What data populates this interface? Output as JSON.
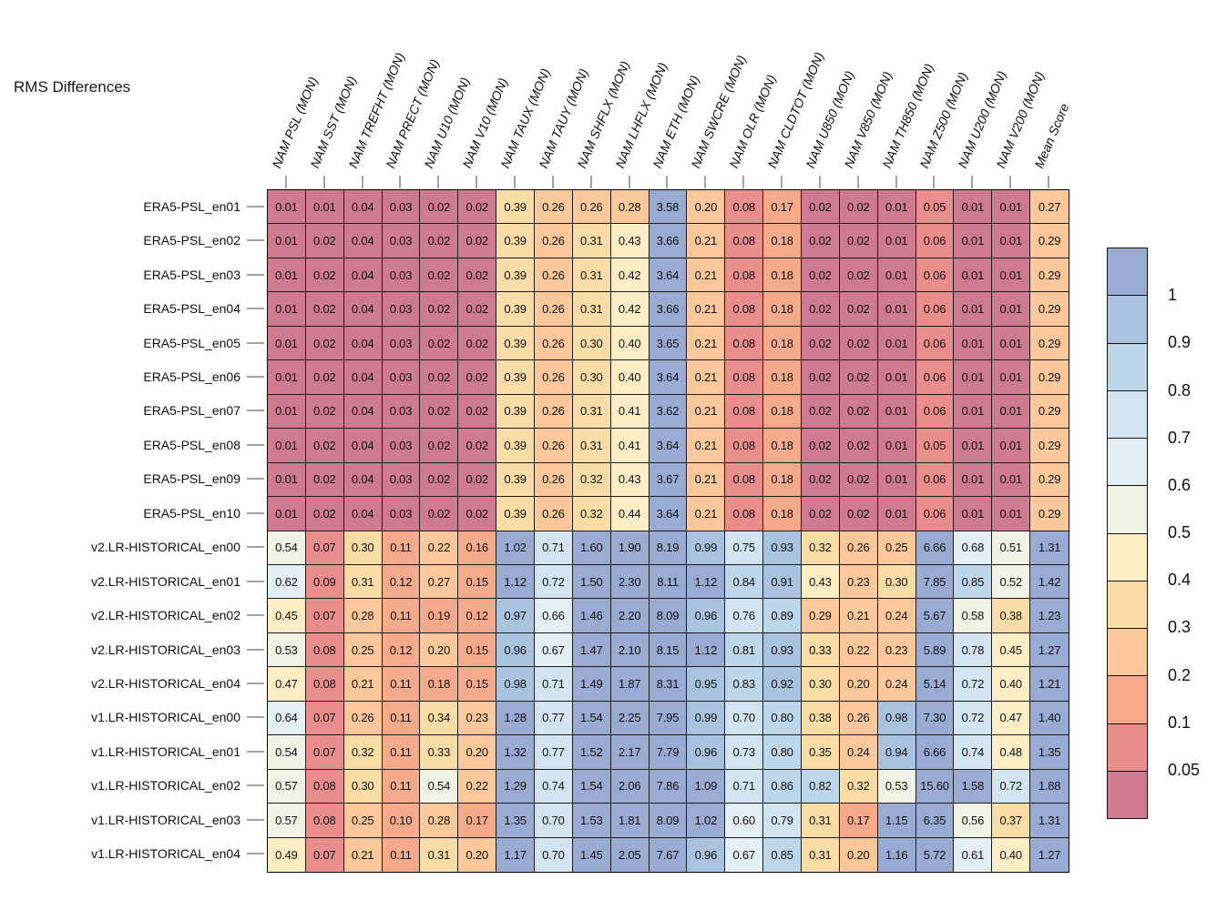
{
  "title": "RMS Differences",
  "chart_data": {
    "type": "heatmap",
    "title": "RMS Differences",
    "columns": [
      "NAM PSL (MON)",
      "NAM SST (MON)",
      "NAM TREFHT (MON)",
      "NAM PRECT (MON)",
      "NAM U10 (MON)",
      "NAM V10 (MON)",
      "NAM TAUX (MON)",
      "NAM TAUY (MON)",
      "NAM SHFLX (MON)",
      "NAM LHFLX (MON)",
      "NAM ETH (MON)",
      "NAM SWCRE (MON)",
      "NAM OLR (MON)",
      "NAM CLDTOT (MON)",
      "NAM U850 (MON)",
      "NAM V850 (MON)",
      "NAM TH850 (MON)",
      "NAM Z500 (MON)",
      "NAM U200 (MON)",
      "NAM V200 (MON)",
      "Mean Score"
    ],
    "rows": [
      {
        "label": "ERA5-PSL_en01",
        "values": [
          "0.01",
          "0.01",
          "0.04",
          "0.03",
          "0.02",
          "0.02",
          "0.39",
          "0.26",
          "0.26",
          "0.28",
          "3.58",
          "0.20",
          "0.08",
          "0.17",
          "0.02",
          "0.02",
          "0.01",
          "0.05",
          "0.01",
          "0.01",
          "0.27"
        ]
      },
      {
        "label": "ERA5-PSL_en02",
        "values": [
          "0.01",
          "0.02",
          "0.04",
          "0.03",
          "0.02",
          "0.02",
          "0.39",
          "0.26",
          "0.31",
          "0.43",
          "3.66",
          "0.21",
          "0.08",
          "0.18",
          "0.02",
          "0.02",
          "0.01",
          "0.06",
          "0.01",
          "0.01",
          "0.29"
        ]
      },
      {
        "label": "ERA5-PSL_en03",
        "values": [
          "0.01",
          "0.02",
          "0.04",
          "0.03",
          "0.02",
          "0.02",
          "0.39",
          "0.26",
          "0.31",
          "0.42",
          "3.64",
          "0.21",
          "0.08",
          "0.18",
          "0.02",
          "0.02",
          "0.01",
          "0.06",
          "0.01",
          "0.01",
          "0.29"
        ]
      },
      {
        "label": "ERA5-PSL_en04",
        "values": [
          "0.01",
          "0.02",
          "0.04",
          "0.03",
          "0.02",
          "0.02",
          "0.39",
          "0.26",
          "0.31",
          "0.42",
          "3.66",
          "0.21",
          "0.08",
          "0.18",
          "0.02",
          "0.02",
          "0.01",
          "0.06",
          "0.01",
          "0.01",
          "0.29"
        ]
      },
      {
        "label": "ERA5-PSL_en05",
        "values": [
          "0.01",
          "0.02",
          "0.04",
          "0.03",
          "0.02",
          "0.02",
          "0.39",
          "0.26",
          "0.30",
          "0.40",
          "3.65",
          "0.21",
          "0.08",
          "0.18",
          "0.02",
          "0.02",
          "0.01",
          "0.06",
          "0.01",
          "0.01",
          "0.29"
        ]
      },
      {
        "label": "ERA5-PSL_en06",
        "values": [
          "0.01",
          "0.02",
          "0.04",
          "0.03",
          "0.02",
          "0.02",
          "0.39",
          "0.26",
          "0.30",
          "0.40",
          "3.64",
          "0.21",
          "0.08",
          "0.18",
          "0.02",
          "0.02",
          "0.01",
          "0.06",
          "0.01",
          "0.01",
          "0.29"
        ]
      },
      {
        "label": "ERA5-PSL_en07",
        "values": [
          "0.01",
          "0.02",
          "0.04",
          "0.03",
          "0.02",
          "0.02",
          "0.39",
          "0.26",
          "0.31",
          "0.41",
          "3.62",
          "0.21",
          "0.08",
          "0.18",
          "0.02",
          "0.02",
          "0.01",
          "0.06",
          "0.01",
          "0.01",
          "0.29"
        ]
      },
      {
        "label": "ERA5-PSL_en08",
        "values": [
          "0.01",
          "0.02",
          "0.04",
          "0.03",
          "0.02",
          "0.02",
          "0.39",
          "0.26",
          "0.31",
          "0.41",
          "3.64",
          "0.21",
          "0.08",
          "0.18",
          "0.02",
          "0.02",
          "0.01",
          "0.05",
          "0.01",
          "0.01",
          "0.29"
        ]
      },
      {
        "label": "ERA5-PSL_en09",
        "values": [
          "0.01",
          "0.02",
          "0.04",
          "0.03",
          "0.02",
          "0.02",
          "0.39",
          "0.26",
          "0.32",
          "0.43",
          "3.67",
          "0.21",
          "0.08",
          "0.18",
          "0.02",
          "0.02",
          "0.01",
          "0.06",
          "0.01",
          "0.01",
          "0.29"
        ]
      },
      {
        "label": "ERA5-PSL_en10",
        "values": [
          "0.01",
          "0.02",
          "0.04",
          "0.03",
          "0.02",
          "0.02",
          "0.39",
          "0.26",
          "0.32",
          "0.44",
          "3.64",
          "0.21",
          "0.08",
          "0.18",
          "0.02",
          "0.02",
          "0.01",
          "0.06",
          "0.01",
          "0.01",
          "0.29"
        ]
      },
      {
        "label": "v2.LR-HISTORICAL_en00",
        "values": [
          "0.54",
          "0.07",
          "0.30",
          "0.11",
          "0.22",
          "0.16",
          "1.02",
          "0.71",
          "1.60",
          "1.90",
          "8.19",
          "0.99",
          "0.75",
          "0.93",
          "0.32",
          "0.26",
          "0.25",
          "6.66",
          "0.68",
          "0.51",
          "1.31"
        ]
      },
      {
        "label": "v2.LR-HISTORICAL_en01",
        "values": [
          "0.62",
          "0.09",
          "0.31",
          "0.12",
          "0.27",
          "0.15",
          "1.12",
          "0.72",
          "1.50",
          "2.30",
          "8.11",
          "1.12",
          "0.84",
          "0.91",
          "0.43",
          "0.23",
          "0.30",
          "7.85",
          "0.85",
          "0.52",
          "1.42"
        ]
      },
      {
        "label": "v2.LR-HISTORICAL_en02",
        "values": [
          "0.45",
          "0.07",
          "0.28",
          "0.11",
          "0.19",
          "0.12",
          "0.97",
          "0.66",
          "1.46",
          "2.20",
          "8.09",
          "0.96",
          "0.76",
          "0.89",
          "0.29",
          "0.21",
          "0.24",
          "5.67",
          "0.58",
          "0.38",
          "1.23"
        ]
      },
      {
        "label": "v2.LR-HISTORICAL_en03",
        "values": [
          "0.53",
          "0.08",
          "0.25",
          "0.12",
          "0.20",
          "0.15",
          "0.96",
          "0.67",
          "1.47",
          "2.10",
          "8.15",
          "1.12",
          "0.81",
          "0.93",
          "0.33",
          "0.22",
          "0.23",
          "5.89",
          "0.78",
          "0.45",
          "1.27"
        ]
      },
      {
        "label": "v2.LR-HISTORICAL_en04",
        "values": [
          "0.47",
          "0.08",
          "0.21",
          "0.11",
          "0.18",
          "0.15",
          "0.98",
          "0.71",
          "1.49",
          "1.87",
          "8.31",
          "0.95",
          "0.83",
          "0.92",
          "0.30",
          "0.20",
          "0.24",
          "5.14",
          "0.72",
          "0.40",
          "1.21"
        ]
      },
      {
        "label": "v1.LR-HISTORICAL_en00",
        "values": [
          "0.64",
          "0.07",
          "0.26",
          "0.11",
          "0.34",
          "0.23",
          "1.28",
          "0.77",
          "1.54",
          "2.25",
          "7.95",
          "0.99",
          "0.70",
          "0.80",
          "0.38",
          "0.26",
          "0.98",
          "7.30",
          "0.72",
          "0.47",
          "1.40"
        ]
      },
      {
        "label": "v1.LR-HISTORICAL_en01",
        "values": [
          "0.54",
          "0.07",
          "0.32",
          "0.11",
          "0.33",
          "0.20",
          "1.32",
          "0.77",
          "1.52",
          "2.17",
          "7.79",
          "0.96",
          "0.73",
          "0.80",
          "0.35",
          "0.24",
          "0.94",
          "6.66",
          "0.74",
          "0.48",
          "1.35"
        ]
      },
      {
        "label": "v1.LR-HISTORICAL_en02",
        "values": [
          "0.57",
          "0.08",
          "0.30",
          "0.11",
          "0.54",
          "0.22",
          "1.29",
          "0.74",
          "1.54",
          "2.06",
          "7.86",
          "1.09",
          "0.71",
          "0.86",
          "0.82",
          "0.32",
          "0.53",
          "15.60",
          "1.58",
          "0.72",
          "1.88"
        ]
      },
      {
        "label": "v1.LR-HISTORICAL_en03",
        "values": [
          "0.57",
          "0.08",
          "0.25",
          "0.10",
          "0.28",
          "0.17",
          "1.35",
          "0.70",
          "1.53",
          "1.81",
          "8.09",
          "1.02",
          "0.60",
          "0.79",
          "0.31",
          "0.17",
          "1.15",
          "6.35",
          "0.56",
          "0.37",
          "1.31"
        ]
      },
      {
        "label": "v1.LR-HISTORICAL_en04",
        "values": [
          "0.49",
          "0.07",
          "0.21",
          "0.11",
          "0.31",
          "0.20",
          "1.17",
          "0.70",
          "1.45",
          "2.05",
          "7.67",
          "0.96",
          "0.67",
          "0.85",
          "0.31",
          "0.20",
          "1.16",
          "5.72",
          "0.61",
          "0.40",
          "1.27"
        ]
      }
    ],
    "colorbar": {
      "tick_labels": [
        "1",
        "0.9",
        "0.8",
        "0.7",
        "0.6",
        "0.5",
        "0.4",
        "0.3",
        "0.2",
        "0.1",
        "0.05"
      ],
      "bin_thresholds": [
        0.05,
        0.1,
        0.2,
        0.3,
        0.4,
        0.5,
        0.6,
        0.7,
        0.8,
        0.9,
        1.0
      ],
      "palette_low_to_high": [
        "#CE7A90",
        "#E98E8D",
        "#F6AA8C",
        "#FBC79B",
        "#FCDCA6",
        "#FCEDC4",
        "#F0F2E3",
        "#E3EFF5",
        "#D2E4F0",
        "#BDD6EA",
        "#A9C3DF",
        "#9AABD3"
      ]
    },
    "legend_position": "right",
    "grid_lines": "on"
  }
}
